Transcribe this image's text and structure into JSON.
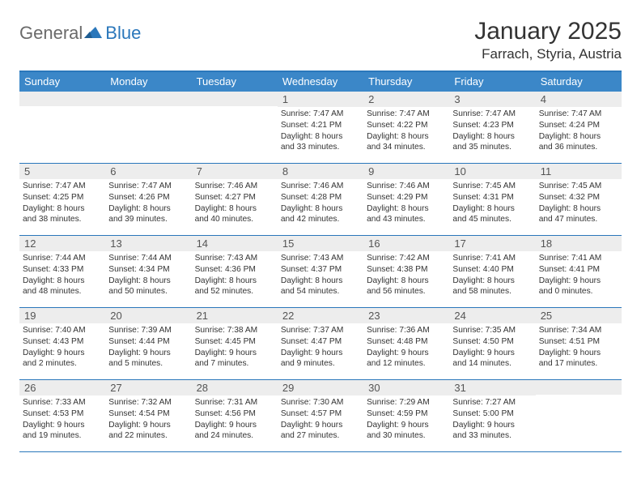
{
  "brand": {
    "general": "General",
    "blue": "Blue"
  },
  "title": "January 2025",
  "location": "Farrach, Styria, Austria",
  "header_color": "#3b87c8",
  "border_color": "#2a77bb",
  "daynum_bg": "#ededed",
  "weekdays": [
    "Sunday",
    "Monday",
    "Tuesday",
    "Wednesday",
    "Thursday",
    "Friday",
    "Saturday"
  ],
  "weeks": [
    [
      {
        "day": "",
        "sunrise": "",
        "sunset": "",
        "daylight1": "",
        "daylight2": ""
      },
      {
        "day": "",
        "sunrise": "",
        "sunset": "",
        "daylight1": "",
        "daylight2": ""
      },
      {
        "day": "",
        "sunrise": "",
        "sunset": "",
        "daylight1": "",
        "daylight2": ""
      },
      {
        "day": "1",
        "sunrise": "Sunrise: 7:47 AM",
        "sunset": "Sunset: 4:21 PM",
        "daylight1": "Daylight: 8 hours",
        "daylight2": "and 33 minutes."
      },
      {
        "day": "2",
        "sunrise": "Sunrise: 7:47 AM",
        "sunset": "Sunset: 4:22 PM",
        "daylight1": "Daylight: 8 hours",
        "daylight2": "and 34 minutes."
      },
      {
        "day": "3",
        "sunrise": "Sunrise: 7:47 AM",
        "sunset": "Sunset: 4:23 PM",
        "daylight1": "Daylight: 8 hours",
        "daylight2": "and 35 minutes."
      },
      {
        "day": "4",
        "sunrise": "Sunrise: 7:47 AM",
        "sunset": "Sunset: 4:24 PM",
        "daylight1": "Daylight: 8 hours",
        "daylight2": "and 36 minutes."
      }
    ],
    [
      {
        "day": "5",
        "sunrise": "Sunrise: 7:47 AM",
        "sunset": "Sunset: 4:25 PM",
        "daylight1": "Daylight: 8 hours",
        "daylight2": "and 38 minutes."
      },
      {
        "day": "6",
        "sunrise": "Sunrise: 7:47 AM",
        "sunset": "Sunset: 4:26 PM",
        "daylight1": "Daylight: 8 hours",
        "daylight2": "and 39 minutes."
      },
      {
        "day": "7",
        "sunrise": "Sunrise: 7:46 AM",
        "sunset": "Sunset: 4:27 PM",
        "daylight1": "Daylight: 8 hours",
        "daylight2": "and 40 minutes."
      },
      {
        "day": "8",
        "sunrise": "Sunrise: 7:46 AM",
        "sunset": "Sunset: 4:28 PM",
        "daylight1": "Daylight: 8 hours",
        "daylight2": "and 42 minutes."
      },
      {
        "day": "9",
        "sunrise": "Sunrise: 7:46 AM",
        "sunset": "Sunset: 4:29 PM",
        "daylight1": "Daylight: 8 hours",
        "daylight2": "and 43 minutes."
      },
      {
        "day": "10",
        "sunrise": "Sunrise: 7:45 AM",
        "sunset": "Sunset: 4:31 PM",
        "daylight1": "Daylight: 8 hours",
        "daylight2": "and 45 minutes."
      },
      {
        "day": "11",
        "sunrise": "Sunrise: 7:45 AM",
        "sunset": "Sunset: 4:32 PM",
        "daylight1": "Daylight: 8 hours",
        "daylight2": "and 47 minutes."
      }
    ],
    [
      {
        "day": "12",
        "sunrise": "Sunrise: 7:44 AM",
        "sunset": "Sunset: 4:33 PM",
        "daylight1": "Daylight: 8 hours",
        "daylight2": "and 48 minutes."
      },
      {
        "day": "13",
        "sunrise": "Sunrise: 7:44 AM",
        "sunset": "Sunset: 4:34 PM",
        "daylight1": "Daylight: 8 hours",
        "daylight2": "and 50 minutes."
      },
      {
        "day": "14",
        "sunrise": "Sunrise: 7:43 AM",
        "sunset": "Sunset: 4:36 PM",
        "daylight1": "Daylight: 8 hours",
        "daylight2": "and 52 minutes."
      },
      {
        "day": "15",
        "sunrise": "Sunrise: 7:43 AM",
        "sunset": "Sunset: 4:37 PM",
        "daylight1": "Daylight: 8 hours",
        "daylight2": "and 54 minutes."
      },
      {
        "day": "16",
        "sunrise": "Sunrise: 7:42 AM",
        "sunset": "Sunset: 4:38 PM",
        "daylight1": "Daylight: 8 hours",
        "daylight2": "and 56 minutes."
      },
      {
        "day": "17",
        "sunrise": "Sunrise: 7:41 AM",
        "sunset": "Sunset: 4:40 PM",
        "daylight1": "Daylight: 8 hours",
        "daylight2": "and 58 minutes."
      },
      {
        "day": "18",
        "sunrise": "Sunrise: 7:41 AM",
        "sunset": "Sunset: 4:41 PM",
        "daylight1": "Daylight: 9 hours",
        "daylight2": "and 0 minutes."
      }
    ],
    [
      {
        "day": "19",
        "sunrise": "Sunrise: 7:40 AM",
        "sunset": "Sunset: 4:43 PM",
        "daylight1": "Daylight: 9 hours",
        "daylight2": "and 2 minutes."
      },
      {
        "day": "20",
        "sunrise": "Sunrise: 7:39 AM",
        "sunset": "Sunset: 4:44 PM",
        "daylight1": "Daylight: 9 hours",
        "daylight2": "and 5 minutes."
      },
      {
        "day": "21",
        "sunrise": "Sunrise: 7:38 AM",
        "sunset": "Sunset: 4:45 PM",
        "daylight1": "Daylight: 9 hours",
        "daylight2": "and 7 minutes."
      },
      {
        "day": "22",
        "sunrise": "Sunrise: 7:37 AM",
        "sunset": "Sunset: 4:47 PM",
        "daylight1": "Daylight: 9 hours",
        "daylight2": "and 9 minutes."
      },
      {
        "day": "23",
        "sunrise": "Sunrise: 7:36 AM",
        "sunset": "Sunset: 4:48 PM",
        "daylight1": "Daylight: 9 hours",
        "daylight2": "and 12 minutes."
      },
      {
        "day": "24",
        "sunrise": "Sunrise: 7:35 AM",
        "sunset": "Sunset: 4:50 PM",
        "daylight1": "Daylight: 9 hours",
        "daylight2": "and 14 minutes."
      },
      {
        "day": "25",
        "sunrise": "Sunrise: 7:34 AM",
        "sunset": "Sunset: 4:51 PM",
        "daylight1": "Daylight: 9 hours",
        "daylight2": "and 17 minutes."
      }
    ],
    [
      {
        "day": "26",
        "sunrise": "Sunrise: 7:33 AM",
        "sunset": "Sunset: 4:53 PM",
        "daylight1": "Daylight: 9 hours",
        "daylight2": "and 19 minutes."
      },
      {
        "day": "27",
        "sunrise": "Sunrise: 7:32 AM",
        "sunset": "Sunset: 4:54 PM",
        "daylight1": "Daylight: 9 hours",
        "daylight2": "and 22 minutes."
      },
      {
        "day": "28",
        "sunrise": "Sunrise: 7:31 AM",
        "sunset": "Sunset: 4:56 PM",
        "daylight1": "Daylight: 9 hours",
        "daylight2": "and 24 minutes."
      },
      {
        "day": "29",
        "sunrise": "Sunrise: 7:30 AM",
        "sunset": "Sunset: 4:57 PM",
        "daylight1": "Daylight: 9 hours",
        "daylight2": "and 27 minutes."
      },
      {
        "day": "30",
        "sunrise": "Sunrise: 7:29 AM",
        "sunset": "Sunset: 4:59 PM",
        "daylight1": "Daylight: 9 hours",
        "daylight2": "and 30 minutes."
      },
      {
        "day": "31",
        "sunrise": "Sunrise: 7:27 AM",
        "sunset": "Sunset: 5:00 PM",
        "daylight1": "Daylight: 9 hours",
        "daylight2": "and 33 minutes."
      },
      {
        "day": "",
        "sunrise": "",
        "sunset": "",
        "daylight1": "",
        "daylight2": ""
      }
    ]
  ]
}
